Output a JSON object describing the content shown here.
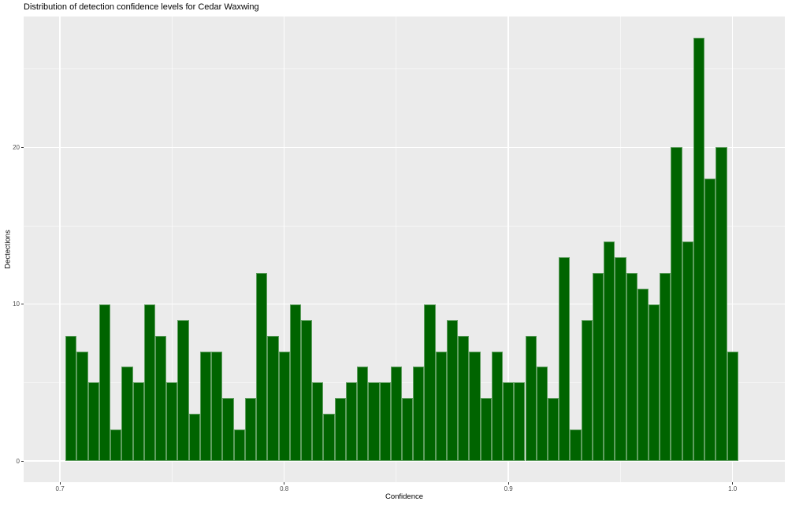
{
  "chart_data": {
    "type": "bar",
    "subtype": "histogram",
    "title": "Distribution of detection confidence levels for Cedar Waxwing",
    "xlabel": "Confidence",
    "ylabel": "Dectections",
    "bin_start": 0.7025,
    "bin_width": 0.005,
    "values": [
      8,
      7,
      5,
      10,
      2,
      6,
      5,
      10,
      8,
      5,
      9,
      3,
      7,
      7,
      4,
      2,
      4,
      12,
      8,
      7,
      10,
      9,
      5,
      3,
      4,
      5,
      6,
      5,
      5,
      6,
      4,
      6,
      10,
      7,
      9,
      8,
      7,
      4,
      7,
      5,
      5,
      8,
      6,
      4,
      13,
      2,
      9,
      12,
      14,
      13,
      12,
      11,
      10,
      12,
      20,
      14,
      27,
      18,
      20,
      7
    ],
    "x_ticks": {
      "values": [
        0.7,
        0.8,
        0.9,
        1.0
      ],
      "labels": [
        "0.7",
        "0.8",
        "0.9",
        "1.0"
      ]
    },
    "y_ticks": {
      "values": [
        0,
        10,
        20
      ],
      "labels": [
        "0",
        "10",
        "20"
      ]
    },
    "x_minor": [
      0.75,
      0.85,
      0.95
    ],
    "y_minor": [
      5,
      15,
      25
    ],
    "xlim": [
      0.6838,
      1.0233
    ],
    "ylim": [
      -1.35,
      28.35
    ],
    "grid": true,
    "legend": "none",
    "colors": {
      "bar_fill": "#006400",
      "bar_border": "#5F9E5F",
      "panel_bg": "#EBEBEB",
      "grid_major": "#FFFFFF",
      "grid_minor": "#FFFFFF",
      "tick_label": "#4D4D4D",
      "tick_mark": "#333333",
      "text": "#000000",
      "background": "#FFFFFF"
    }
  }
}
